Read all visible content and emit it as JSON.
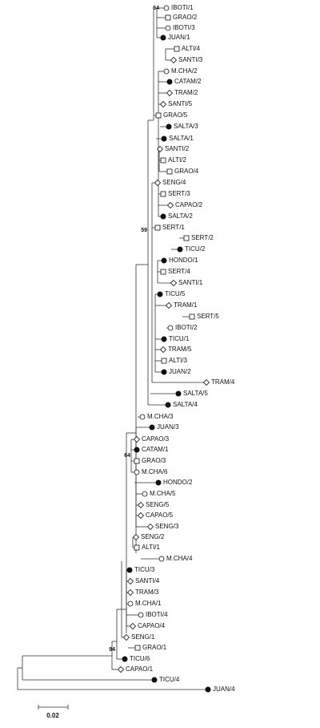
{
  "tree": {
    "leaves": [
      {
        "label": "IBOTI/1",
        "marker": "open"
      },
      {
        "label": "GRAO/2",
        "marker": "square"
      },
      {
        "label": "IBOTI/3",
        "marker": "open"
      },
      {
        "label": "JUAN/1",
        "marker": "filled"
      },
      {
        "label": "ALTI/4",
        "marker": "square"
      },
      {
        "label": "SANTI/3",
        "marker": "diamond"
      },
      {
        "label": "M.CHA/2",
        "marker": "open"
      },
      {
        "label": "CATAM/2",
        "marker": "filled"
      },
      {
        "label": "TRAM/2",
        "marker": "diamond"
      },
      {
        "label": "SANTI/5",
        "marker": "diamond"
      },
      {
        "label": "GRAO/5",
        "marker": "square"
      },
      {
        "label": "SALTA/3",
        "marker": "filled"
      },
      {
        "label": "SALTA/1",
        "marker": "filled"
      },
      {
        "label": "SANTI/2",
        "marker": "diamond"
      },
      {
        "label": "ALTI/2",
        "marker": "square"
      },
      {
        "label": "GRAO/4",
        "marker": "square"
      },
      {
        "label": "SENG/4",
        "marker": "diamond"
      },
      {
        "label": "SERT/3",
        "marker": "square"
      },
      {
        "label": "CAPAO/2",
        "marker": "diamond"
      },
      {
        "label": "SALTA/2",
        "marker": "filled"
      },
      {
        "label": "SERT/1",
        "marker": "square"
      },
      {
        "label": "SERT/2",
        "marker": "square"
      },
      {
        "label": "TICU/2",
        "marker": "filled"
      },
      {
        "label": "HONDO/1",
        "marker": "filled"
      },
      {
        "label": "SERT/4",
        "marker": "square"
      },
      {
        "label": "SANTI/1",
        "marker": "diamond"
      },
      {
        "label": "TICU/5",
        "marker": "filled"
      },
      {
        "label": "TRAM/1",
        "marker": "diamond"
      },
      {
        "label": "SERT/5",
        "marker": "square"
      },
      {
        "label": "IBOTI/2",
        "marker": "open"
      },
      {
        "label": "TICU/1",
        "marker": "filled"
      },
      {
        "label": "TRAM/5",
        "marker": "diamond"
      },
      {
        "label": "ALTI/3",
        "marker": "square"
      },
      {
        "label": "JUAN/2",
        "marker": "filled"
      },
      {
        "label": "TRAM/4",
        "marker": "diamond"
      },
      {
        "label": "SALTA/5",
        "marker": "filled"
      },
      {
        "label": "SALTA/4",
        "marker": "filled"
      },
      {
        "label": "M.CHA/3",
        "marker": "open"
      },
      {
        "label": "JUAN/3",
        "marker": "filled"
      },
      {
        "label": "CAPAO/3",
        "marker": "diamond"
      },
      {
        "label": "CATAM/1",
        "marker": "filled"
      },
      {
        "label": "GRAO/3",
        "marker": "square"
      },
      {
        "label": "M.CHA/6",
        "marker": "open"
      },
      {
        "label": "HONDO/2",
        "marker": "filled"
      },
      {
        "label": "M.CHA/5",
        "marker": "open"
      },
      {
        "label": "SENG/5",
        "marker": "diamond"
      },
      {
        "label": "CAPAO/5",
        "marker": "diamond"
      },
      {
        "label": "SENG/3",
        "marker": "diamond"
      },
      {
        "label": "SENG/2",
        "marker": "diamond"
      },
      {
        "label": "ALTI/1",
        "marker": "square"
      },
      {
        "label": "M.CHA/4",
        "marker": "open"
      },
      {
        "label": "TICU/3",
        "marker": "filled"
      },
      {
        "label": "SANTI/4",
        "marker": "diamond"
      },
      {
        "label": "TRAM/3",
        "marker": "diamond"
      },
      {
        "label": "M.CHA/1",
        "marker": "open"
      },
      {
        "label": "IBOTI/4",
        "marker": "open"
      },
      {
        "label": "CAPAO/4",
        "marker": "diamond"
      },
      {
        "label": "SENG/1",
        "marker": "diamond"
      },
      {
        "label": "GRAO/1",
        "marker": "square"
      },
      {
        "label": "TICU/6",
        "marker": "filled"
      },
      {
        "label": "CAPAO/1",
        "marker": "diamond"
      },
      {
        "label": "TICU/4",
        "marker": "filled"
      },
      {
        "label": "JUAN/4",
        "marker": "filled"
      }
    ],
    "bootstrap_values": [
      64,
      59,
      64,
      94
    ],
    "scale_bar": {
      "label": "0.02"
    }
  }
}
